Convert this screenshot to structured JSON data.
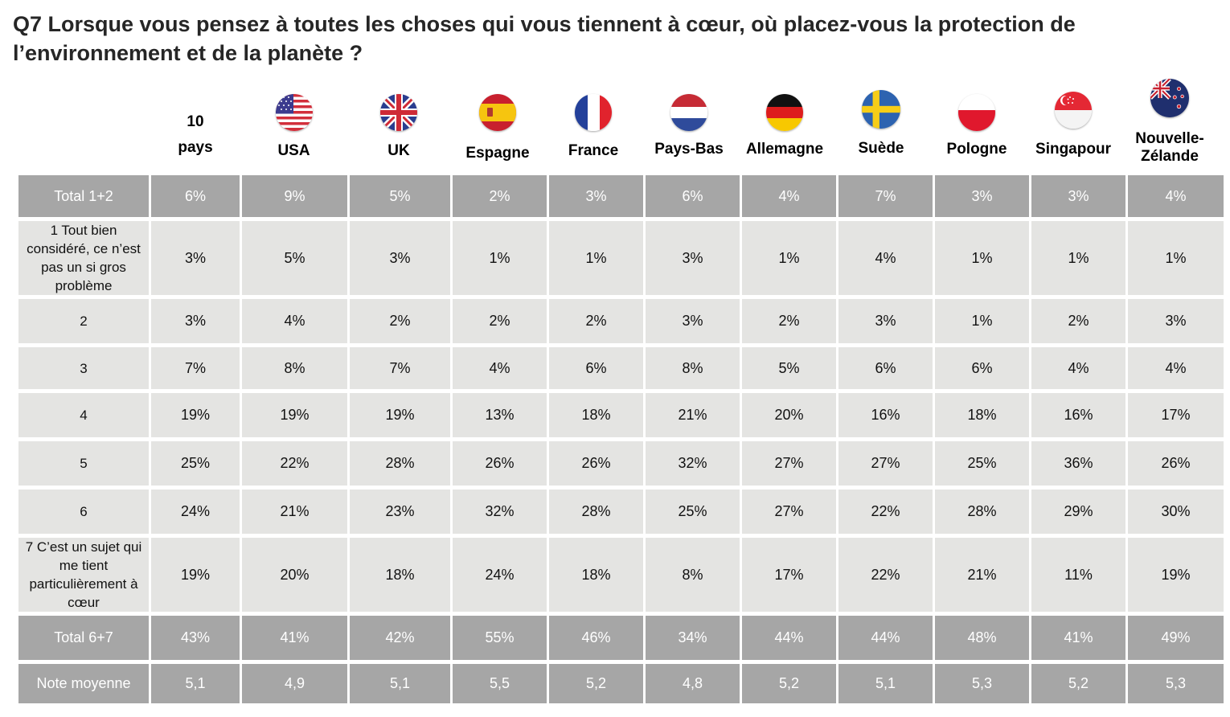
{
  "title": "Q7 Lorsque vous pensez à toutes les choses qui vous tiennent à cœur, où placez-vous la protection de l’environnement et de la planète ?",
  "columns": [
    {
      "label_line1": "10",
      "label_line2": "pays",
      "flag": null
    },
    {
      "label_line1": "USA",
      "label_line2": "",
      "flag": "us-flag-icon"
    },
    {
      "label_line1": "UK",
      "label_line2": "",
      "flag": "uk-flag-icon"
    },
    {
      "label_line1": "Espagne",
      "label_line2": "",
      "flag": "spain-flag-icon"
    },
    {
      "label_line1": "France",
      "label_line2": "",
      "flag": "france-flag-icon"
    },
    {
      "label_line1": "Pays-Bas",
      "label_line2": "",
      "flag": "netherlands-flag-icon"
    },
    {
      "label_line1": "Allemagne",
      "label_line2": "",
      "flag": "germany-flag-icon"
    },
    {
      "label_line1": "Suède",
      "label_line2": "",
      "flag": "sweden-flag-icon"
    },
    {
      "label_line1": "Pologne",
      "label_line2": "",
      "flag": "poland-flag-icon"
    },
    {
      "label_line1": "Singapour",
      "label_line2": "",
      "flag": "singapore-flag-icon"
    },
    {
      "label_line1": "Nouvelle-",
      "label_line2": "Zélande",
      "flag": "new-zealand-flag-icon"
    }
  ],
  "rows": [
    {
      "label": "Total 1+2",
      "style": "dark",
      "values": [
        "6%",
        "9%",
        "5%",
        "2%",
        "3%",
        "6%",
        "4%",
        "7%",
        "3%",
        "3%",
        "4%"
      ]
    },
    {
      "label": "1 Tout bien considéré, ce n’est pas un si gros problème",
      "style": "light",
      "values": [
        "3%",
        "5%",
        "3%",
        "1%",
        "1%",
        "3%",
        "1%",
        "4%",
        "1%",
        "1%",
        "1%"
      ]
    },
    {
      "label": "2",
      "style": "light",
      "values": [
        "3%",
        "4%",
        "2%",
        "2%",
        "2%",
        "3%",
        "2%",
        "3%",
        "1%",
        "2%",
        "3%"
      ]
    },
    {
      "label": "3",
      "style": "light",
      "values": [
        "7%",
        "8%",
        "7%",
        "4%",
        "6%",
        "8%",
        "5%",
        "6%",
        "6%",
        "4%",
        "4%"
      ]
    },
    {
      "label": "4",
      "style": "light",
      "values": [
        "19%",
        "19%",
        "19%",
        "13%",
        "18%",
        "21%",
        "20%",
        "16%",
        "18%",
        "16%",
        "17%"
      ]
    },
    {
      "label": "5",
      "style": "light",
      "values": [
        "25%",
        "22%",
        "28%",
        "26%",
        "26%",
        "32%",
        "27%",
        "27%",
        "25%",
        "36%",
        "26%"
      ]
    },
    {
      "label": "6",
      "style": "light",
      "values": [
        "24%",
        "21%",
        "23%",
        "32%",
        "28%",
        "25%",
        "27%",
        "22%",
        "28%",
        "29%",
        "30%"
      ]
    },
    {
      "label": "7 C’est un sujet qui me tient particulièrement à cœur",
      "style": "light",
      "values": [
        "19%",
        "20%",
        "18%",
        "24%",
        "18%",
        "8%",
        "17%",
        "22%",
        "21%",
        "11%",
        "19%"
      ]
    },
    {
      "label": "Total 6+7",
      "style": "dark",
      "values": [
        "43%",
        "41%",
        "42%",
        "55%",
        "46%",
        "34%",
        "44%",
        "44%",
        "48%",
        "41%",
        "49%"
      ]
    },
    {
      "label": "Note moyenne",
      "style": "dark",
      "values": [
        "5,1",
        "4,9",
        "5,1",
        "5,5",
        "5,2",
        "4,8",
        "5,2",
        "5,1",
        "5,3",
        "5,2",
        "5,3"
      ]
    }
  ],
  "colors": {
    "dark_row": "#a6a6a6",
    "light_row": "#e4e4e2",
    "title_text": "#262626"
  }
}
